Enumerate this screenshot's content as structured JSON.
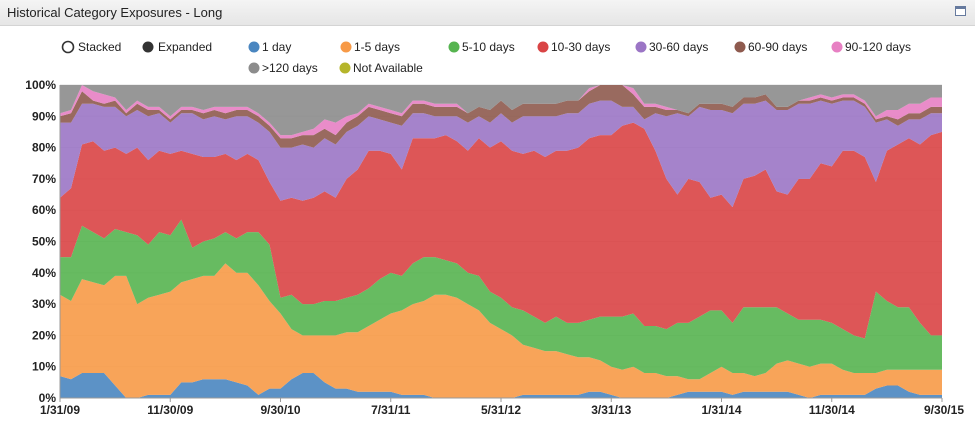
{
  "panel": {
    "title": "Historical Category Exposures - Long"
  },
  "mode_options": [
    {
      "label": "Stacked",
      "selected": false
    },
    {
      "label": "Expanded",
      "selected": true
    }
  ],
  "chart_data": {
    "type": "area",
    "stacked": true,
    "x_ticks": [
      "1/31/09",
      "11/30/09",
      "9/30/10",
      "7/31/11",
      "5/31/12",
      "3/31/13",
      "1/31/14",
      "11/30/14",
      "9/30/15"
    ],
    "y_ticks": [
      "0%",
      "10%",
      "20%",
      "30%",
      "40%",
      "50%",
      "60%",
      "70%",
      "80%",
      "90%",
      "100%"
    ],
    "ylim": [
      0,
      100
    ],
    "grid": true,
    "legend_position": "top",
    "x": [
      "1/31/09",
      "2/28/09",
      "3/31/09",
      "4/30/09",
      "5/31/09",
      "6/30/09",
      "7/31/09",
      "8/31/09",
      "9/30/09",
      "10/31/09",
      "11/30/09",
      "12/31/09",
      "1/31/10",
      "2/28/10",
      "3/31/10",
      "4/30/10",
      "5/31/10",
      "6/30/10",
      "7/31/10",
      "8/31/10",
      "9/30/10",
      "10/31/10",
      "11/30/10",
      "12/31/10",
      "1/31/11",
      "2/28/11",
      "3/31/11",
      "4/30/11",
      "5/31/11",
      "6/30/11",
      "7/31/11",
      "8/31/11",
      "9/30/11",
      "10/31/11",
      "11/30/11",
      "12/31/11",
      "1/31/12",
      "2/29/12",
      "3/31/12",
      "4/30/12",
      "5/31/12",
      "6/30/12",
      "7/31/12",
      "8/31/12",
      "9/30/12",
      "10/31/12",
      "11/30/12",
      "12/31/12",
      "1/31/13",
      "2/28/13",
      "3/31/13",
      "4/30/13",
      "5/31/13",
      "6/30/13",
      "7/31/13",
      "8/31/13",
      "9/30/13",
      "10/31/13",
      "11/30/13",
      "12/31/13",
      "1/31/14",
      "2/28/14",
      "3/31/14",
      "4/30/14",
      "5/31/14",
      "6/30/14",
      "7/31/14",
      "8/31/14",
      "9/30/14",
      "10/31/14",
      "11/30/14",
      "12/31/14",
      "1/31/15",
      "2/28/15",
      "3/31/15",
      "4/30/15",
      "5/31/15",
      "6/30/15",
      "7/31/15",
      "8/31/15",
      "9/30/15"
    ],
    "series": [
      {
        "name": "1 day",
        "color": "#4a86c0",
        "values": [
          7,
          6,
          8,
          8,
          8,
          4,
          0,
          0,
          1,
          1,
          1,
          5,
          5,
          6,
          6,
          6,
          5,
          4,
          1,
          3,
          3,
          6,
          8,
          8,
          5,
          3,
          3,
          2,
          2,
          2,
          2,
          1,
          1,
          1,
          0,
          0,
          0,
          0,
          0,
          0,
          0,
          0,
          1,
          1,
          1,
          1,
          1,
          1,
          2,
          2,
          1,
          0,
          0,
          0,
          0,
          0,
          1,
          2,
          2,
          2,
          2,
          1,
          2,
          2,
          2,
          2,
          2,
          1,
          0,
          1,
          1,
          1,
          1,
          1,
          3,
          4,
          4,
          2,
          1,
          1,
          1
        ]
      },
      {
        "name": "1-5 days",
        "color": "#f79a47",
        "values": [
          26,
          25,
          30,
          29,
          28,
          35,
          39,
          30,
          31,
          32,
          33,
          32,
          33,
          33,
          33,
          37,
          35,
          36,
          35,
          28,
          24,
          16,
          12,
          12,
          15,
          17,
          18,
          19,
          21,
          23,
          25,
          27,
          29,
          30,
          33,
          33,
          32,
          30,
          28,
          24,
          22,
          20,
          16,
          15,
          14,
          14,
          13,
          12,
          11,
          10,
          9,
          9,
          10,
          8,
          8,
          7,
          6,
          4,
          4,
          6,
          8,
          7,
          6,
          5,
          6,
          9,
          10,
          10,
          10,
          10,
          10,
          8,
          7,
          7,
          5,
          5,
          5,
          7,
          8,
          8,
          8
        ]
      },
      {
        "name": "5-10 days",
        "color": "#56b450",
        "values": [
          12,
          14,
          17,
          16,
          15,
          15,
          14,
          22,
          17,
          20,
          18,
          20,
          10,
          11,
          12,
          10,
          11,
          13,
          17,
          18,
          5,
          11,
          10,
          10,
          11,
          11,
          11,
          12,
          12,
          13,
          13,
          11,
          13,
          14,
          12,
          11,
          11,
          10,
          11,
          10,
          10,
          9,
          11,
          10,
          9,
          11,
          10,
          11,
          12,
          14,
          16,
          17,
          17,
          15,
          15,
          15,
          17,
          18,
          20,
          20,
          18,
          16,
          21,
          22,
          21,
          18,
          15,
          14,
          15,
          14,
          13,
          13,
          12,
          11,
          26,
          22,
          20,
          20,
          15,
          11,
          11
        ]
      },
      {
        "name": "10-30 days",
        "color": "#d94445",
        "values": [
          19,
          22,
          26,
          29,
          28,
          26,
          25,
          28,
          27,
          26,
          26,
          22,
          30,
          27,
          26,
          25,
          25,
          25,
          23,
          20,
          31,
          31,
          33,
          34,
          35,
          33,
          38,
          40,
          44,
          41,
          38,
          34,
          40,
          38,
          38,
          40,
          39,
          39,
          44,
          46,
          50,
          50,
          50,
          53,
          53,
          53,
          55,
          56,
          58,
          58,
          58,
          61,
          61,
          63,
          56,
          48,
          41,
          46,
          43,
          36,
          37,
          37,
          41,
          42,
          44,
          37,
          38,
          45,
          45,
          50,
          50,
          57,
          59,
          58,
          35,
          48,
          52,
          54,
          57,
          64,
          65
        ]
      },
      {
        "name": "30-60 days",
        "color": "#9b75c5",
        "values": [
          24,
          21,
          13,
          12,
          14,
          13,
          12,
          12,
          14,
          12,
          10,
          12,
          13,
          12,
          13,
          11,
          14,
          12,
          12,
          16,
          17,
          16,
          18,
          16,
          17,
          17,
          15,
          14,
          11,
          10,
          10,
          14,
          8,
          8,
          7,
          6,
          8,
          9,
          7,
          8,
          9,
          9,
          12,
          11,
          13,
          11,
          12,
          11,
          11,
          11,
          11,
          6,
          5,
          3,
          12,
          20,
          26,
          20,
          24,
          28,
          27,
          30,
          24,
          23,
          22,
          26,
          27,
          24,
          24,
          20,
          20,
          16,
          16,
          16,
          19,
          10,
          6,
          6,
          8,
          7,
          6
        ]
      },
      {
        "name": "60-90 days",
        "color": "#8e5a4e",
        "values": [
          2,
          3,
          4,
          1,
          1,
          2,
          1,
          2,
          2,
          1,
          1,
          1,
          1,
          2,
          2,
          2,
          2,
          2,
          2,
          2,
          3,
          3,
          3,
          4,
          3,
          3,
          3,
          3,
          3,
          3,
          3,
          3,
          3,
          3,
          3,
          3,
          3,
          3,
          3,
          4,
          4,
          4,
          4,
          4,
          4,
          4,
          4,
          4,
          4,
          5,
          6,
          7,
          4,
          4,
          2,
          2,
          1,
          1,
          1,
          2,
          2,
          2,
          2,
          2,
          2,
          1,
          1,
          1,
          1,
          1,
          1,
          1,
          1,
          1,
          1,
          1,
          2,
          2,
          2,
          2,
          2
        ]
      },
      {
        "name": "90-120 days",
        "color": "#e780c3",
        "values": [
          1,
          1,
          2,
          3,
          3,
          1,
          1,
          1,
          1,
          1,
          1,
          1,
          1,
          1,
          1,
          2,
          1,
          1,
          1,
          1,
          1,
          1,
          1,
          2,
          3,
          4,
          2,
          1,
          1,
          1,
          1,
          1,
          1,
          1,
          1,
          1,
          1,
          0,
          0,
          0,
          0,
          0,
          0,
          0,
          0,
          0,
          0,
          0,
          1,
          1,
          1,
          2,
          2,
          1,
          1,
          1,
          0,
          0,
          0,
          0,
          0,
          0,
          0,
          0,
          0,
          0,
          0,
          0,
          1,
          1,
          1,
          1,
          1,
          1,
          1,
          2,
          3,
          3,
          3,
          3,
          3
        ]
      },
      {
        "name": ">120 days",
        "color": "#8c8c8c",
        "values": [
          9,
          8,
          0,
          2,
          3,
          4,
          8,
          5,
          7,
          7,
          10,
          7,
          7,
          8,
          7,
          7,
          7,
          7,
          9,
          12,
          16,
          16,
          15,
          14,
          11,
          12,
          10,
          9,
          6,
          7,
          8,
          9,
          5,
          5,
          6,
          6,
          6,
          9,
          7,
          8,
          5,
          8,
          6,
          6,
          6,
          6,
          5,
          5,
          1,
          -1,
          -2,
          -2,
          1,
          6,
          6,
          7,
          8,
          9,
          6,
          6,
          6,
          7,
          4,
          4,
          3,
          7,
          7,
          5,
          4,
          3,
          4,
          3,
          3,
          5,
          10,
          8,
          8,
          6,
          6,
          4,
          4
        ]
      },
      {
        "name": "Not Available",
        "color": "#b5b52b",
        "values": [
          0,
          0,
          0,
          0,
          0,
          0,
          0,
          0,
          0,
          0,
          0,
          0,
          0,
          0,
          0,
          0,
          0,
          0,
          0,
          0,
          0,
          0,
          0,
          0,
          0,
          0,
          0,
          0,
          0,
          0,
          0,
          0,
          0,
          0,
          0,
          0,
          0,
          0,
          0,
          0,
          0,
          0,
          0,
          0,
          0,
          0,
          0,
          0,
          0,
          0,
          0,
          0,
          0,
          0,
          0,
          0,
          0,
          0,
          0,
          0,
          0,
          0,
          0,
          0,
          0,
          0,
          0,
          0,
          0,
          0,
          0,
          0,
          0,
          0,
          0,
          0,
          0,
          0,
          0,
          0,
          0
        ]
      }
    ]
  }
}
